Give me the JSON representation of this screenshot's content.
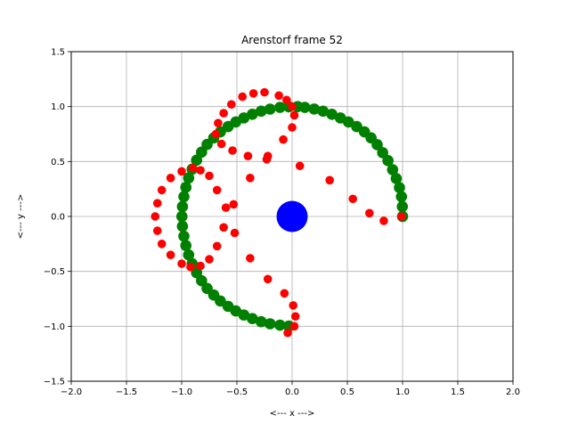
{
  "chart_data": {
    "type": "scatter",
    "title": "Arenstorf frame 52",
    "xlabel": "<---  x  --->",
    "ylabel": "<---  y  --->",
    "xlim": [
      -2.0,
      2.0
    ],
    "ylim": [
      -1.5,
      1.5
    ],
    "xticks": [
      -2.0,
      -1.5,
      -1.0,
      -0.5,
      0.0,
      0.5,
      1.0,
      1.5,
      2.0
    ],
    "yticks": [
      -1.5,
      -1.0,
      -0.5,
      0.0,
      0.5,
      1.0,
      1.5
    ],
    "xtick_labels": [
      "−2.0",
      "−1.5",
      "−1.0",
      "−0.5",
      "0.0",
      "0.5",
      "1.0",
      "1.5",
      "2.0"
    ],
    "ytick_labels": [
      "−1.5",
      "−1.0",
      "−0.5",
      "0.0",
      "0.5",
      "1.0",
      "1.5"
    ],
    "grid": true,
    "series": [
      {
        "color": "#008000",
        "marker_size": "large",
        "points": [
          [
            1.0,
            0.0
          ],
          [
            0.998,
            0.09
          ],
          [
            0.99,
            0.18
          ],
          [
            0.972,
            0.262
          ],
          [
            0.943,
            0.345
          ],
          [
            0.91,
            0.425
          ],
          [
            0.868,
            0.508
          ],
          [
            0.82,
            0.58
          ],
          [
            0.77,
            0.653
          ],
          [
            0.715,
            0.715
          ],
          [
            0.655,
            0.77
          ],
          [
            0.585,
            0.818
          ],
          [
            0.51,
            0.86
          ],
          [
            0.437,
            0.897
          ],
          [
            0.36,
            0.93
          ],
          [
            0.28,
            0.958
          ],
          [
            0.2,
            0.978
          ],
          [
            0.115,
            0.993
          ],
          [
            0.05,
            1.0
          ],
          [
            -0.03,
            0.998
          ],
          [
            -0.11,
            0.993
          ],
          [
            -0.2,
            0.977
          ],
          [
            -0.28,
            0.958
          ],
          [
            -0.36,
            0.93
          ],
          [
            -0.437,
            0.897
          ],
          [
            -0.51,
            0.86
          ],
          [
            -0.58,
            0.818
          ],
          [
            -0.65,
            0.77
          ],
          [
            -0.71,
            0.715
          ],
          [
            -0.77,
            0.655
          ],
          [
            -0.82,
            0.585
          ],
          [
            -0.865,
            0.512
          ],
          [
            -0.905,
            0.43
          ],
          [
            -0.937,
            0.35
          ],
          [
            -0.962,
            0.265
          ],
          [
            -0.98,
            0.18
          ],
          [
            -0.993,
            0.09
          ],
          [
            -0.998,
            0.0
          ],
          [
            -0.993,
            -0.09
          ],
          [
            -0.98,
            -0.18
          ],
          [
            -0.962,
            -0.265
          ],
          [
            -0.937,
            -0.35
          ],
          [
            -0.905,
            -0.43
          ],
          [
            -0.865,
            -0.512
          ],
          [
            -0.82,
            -0.585
          ],
          [
            -0.77,
            -0.655
          ],
          [
            -0.71,
            -0.715
          ],
          [
            -0.65,
            -0.77
          ],
          [
            -0.58,
            -0.818
          ],
          [
            -0.51,
            -0.86
          ],
          [
            -0.437,
            -0.897
          ],
          [
            -0.36,
            -0.93
          ],
          [
            -0.28,
            -0.958
          ],
          [
            -0.2,
            -0.977
          ],
          [
            -0.11,
            -0.99
          ],
          [
            -0.03,
            -0.998
          ]
        ]
      },
      {
        "color": "#ff0000",
        "marker_size": "medium",
        "points": [
          [
            0.0,
            1.0
          ],
          [
            0.02,
            0.92
          ],
          [
            0.0,
            0.81
          ],
          [
            -0.08,
            0.7
          ],
          [
            -0.05,
            1.06
          ],
          [
            -0.12,
            1.1
          ],
          [
            -0.25,
            1.13
          ],
          [
            -0.35,
            1.12
          ],
          [
            -0.45,
            1.09
          ],
          [
            -0.55,
            1.02
          ],
          [
            -0.62,
            0.94
          ],
          [
            -0.67,
            0.85
          ],
          [
            -0.69,
            0.75
          ],
          [
            -0.64,
            0.66
          ],
          [
            -0.54,
            0.6
          ],
          [
            -0.4,
            0.55
          ],
          [
            -0.23,
            0.52
          ],
          [
            -0.22,
            0.55
          ],
          [
            0.07,
            0.46
          ],
          [
            0.34,
            0.33
          ],
          [
            0.55,
            0.16
          ],
          [
            0.7,
            0.03
          ],
          [
            0.83,
            -0.04
          ],
          [
            0.99,
            0.0
          ],
          [
            -1.0,
            0.41
          ],
          [
            -1.1,
            0.35
          ],
          [
            -1.18,
            0.24
          ],
          [
            -1.22,
            0.12
          ],
          [
            -1.24,
            0.0
          ],
          [
            -1.22,
            -0.13
          ],
          [
            -1.18,
            -0.25
          ],
          [
            -1.1,
            -0.35
          ],
          [
            -1.0,
            -0.43
          ],
          [
            -0.92,
            -0.46
          ],
          [
            -0.83,
            -0.45
          ],
          [
            -0.75,
            -0.39
          ],
          [
            -0.68,
            -0.27
          ],
          [
            -0.62,
            -0.1
          ],
          [
            -0.6,
            0.08
          ],
          [
            -0.53,
            0.11
          ],
          [
            -0.52,
            -0.15
          ],
          [
            -0.38,
            -0.38
          ],
          [
            -0.38,
            0.35
          ],
          [
            -0.68,
            0.24
          ],
          [
            -0.75,
            0.37
          ],
          [
            -0.83,
            0.42
          ],
          [
            -0.9,
            0.44
          ],
          [
            -0.22,
            -0.57
          ],
          [
            -0.07,
            -0.7
          ],
          [
            0.01,
            -0.81
          ],
          [
            0.03,
            -0.91
          ],
          [
            0.02,
            -1.0
          ],
          [
            -0.04,
            -1.06
          ]
        ]
      },
      {
        "color": "#0000ff",
        "marker_size": "huge",
        "points": [
          [
            0.0,
            0.0
          ]
        ]
      }
    ]
  }
}
